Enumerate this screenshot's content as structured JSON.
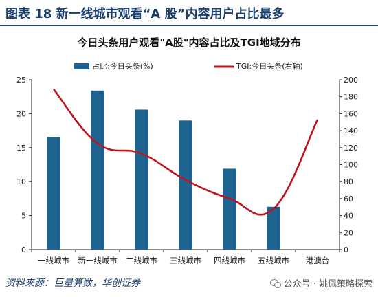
{
  "header": {
    "figure_title": "图表 18    新一线城市观看“A 股”内容用户占比最多"
  },
  "chart_data": {
    "type": "bar+line",
    "title": "今日头条用户观看\"A股\"内容占比及TGI地域分布",
    "categories": [
      "一线城市",
      "新一线城市",
      "二线城市",
      "三线城市",
      "四线城市",
      "五线城市",
      "港澳台"
    ],
    "series": [
      {
        "name": "占比:今日头条(%)",
        "type": "bar",
        "axis": "left",
        "color": "#1f6391",
        "values": [
          16.6,
          23.4,
          20.6,
          19.0,
          11.9,
          6.3,
          null
        ]
      },
      {
        "name": "TGI:今日头条(右轴)",
        "type": "line",
        "axis": "right",
        "color": "#c0141c",
        "values": [
          189,
          125,
          113,
          82,
          60,
          48,
          153
        ]
      }
    ],
    "y_left": {
      "min": 0,
      "max": 25,
      "ticks": [
        0,
        5,
        10,
        15,
        20,
        25
      ]
    },
    "y_right": {
      "min": 0,
      "max": 200,
      "ticks": [
        0,
        20,
        40,
        60,
        80,
        100,
        120,
        140,
        160,
        180,
        200
      ]
    },
    "legend_position": "top",
    "grid": false
  },
  "footer": {
    "source": "资料来源：巨量算数，华创证券",
    "watermark": "公众号 · 姚佩策略探索"
  }
}
